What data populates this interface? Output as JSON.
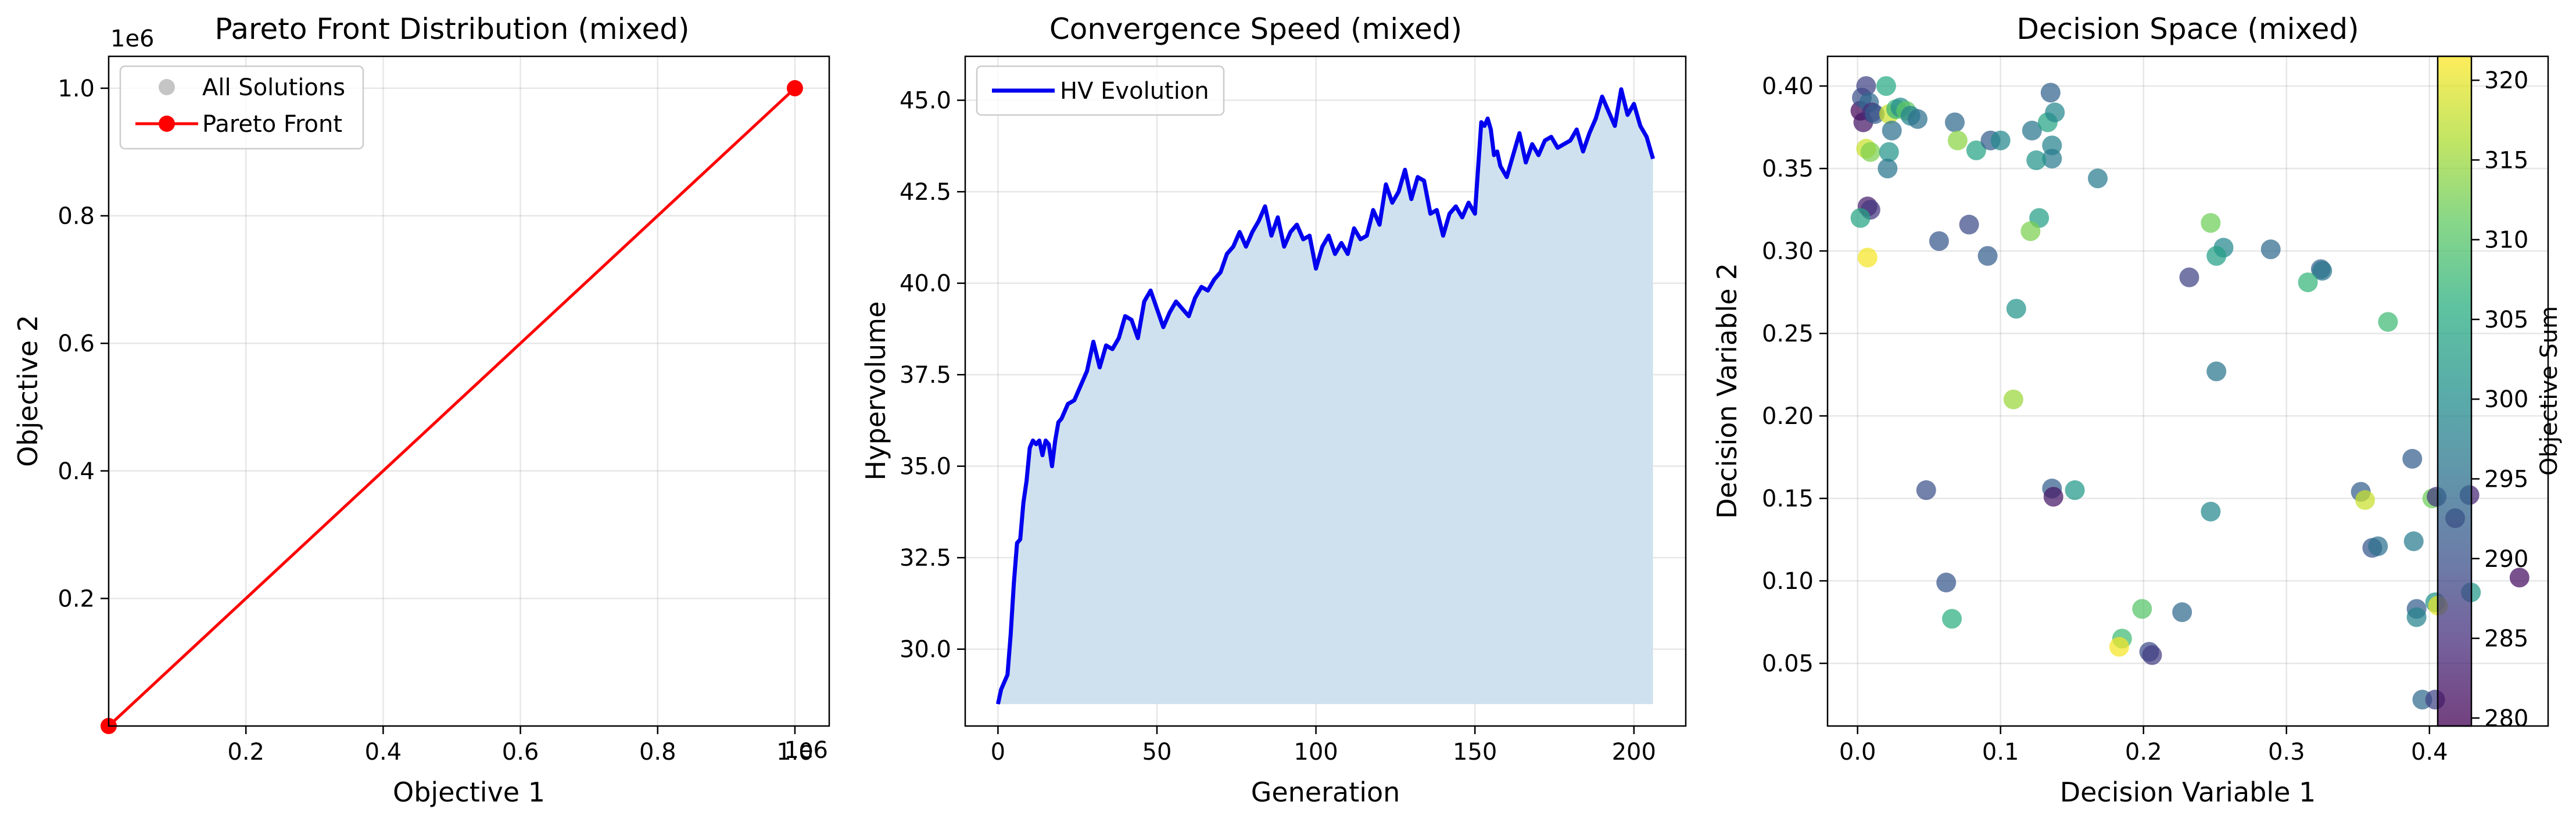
{
  "chart_data": [
    {
      "type": "line",
      "title": "Pareto Front Distribution (mixed)",
      "xlabel": "Objective 1",
      "ylabel": "Objective 2",
      "x_offset_text": "1e6",
      "y_offset_text": "1e6",
      "xlim": [
        0,
        1.05
      ],
      "ylim": [
        0,
        1.05
      ],
      "x_ticks": [
        0.2,
        0.4,
        0.6,
        0.8,
        1.0
      ],
      "x_tick_labels": [
        "0.2",
        "0.4",
        "0.6",
        "0.8",
        "1.0"
      ],
      "y_ticks": [
        0.2,
        0.4,
        0.6,
        0.8,
        1.0
      ],
      "y_tick_labels": [
        "0.2",
        "0.4",
        "0.6",
        "0.8",
        "1.0"
      ],
      "grid": true,
      "legend": "top-left",
      "series": [
        {
          "name": "All Solutions",
          "kind": "scatter",
          "color": "#bbbbbb",
          "x": [],
          "y": []
        },
        {
          "name": "Pareto Front",
          "kind": "line-marker",
          "color": "#ff0000",
          "x": [
            0,
            1.0
          ],
          "y": [
            0,
            1.0
          ]
        }
      ]
    },
    {
      "type": "area",
      "title": "Convergence Speed (mixed)",
      "xlabel": "Generation",
      "ylabel": "Hypervolume",
      "xlim": [
        -10.3,
        216.3
      ],
      "ylim": [
        27.9,
        46.2
      ],
      "x_ticks": [
        0,
        50,
        100,
        150,
        200
      ],
      "x_tick_labels": [
        "0",
        "50",
        "100",
        "150",
        "200"
      ],
      "y_ticks": [
        30.0,
        32.5,
        35.0,
        37.5,
        40.0,
        42.5,
        45.0
      ],
      "y_tick_labels": [
        "30.0",
        "32.5",
        "35.0",
        "37.5",
        "40.0",
        "42.5",
        "45.0"
      ],
      "grid": true,
      "legend": "top-left",
      "fill_color": "#cfe1ee",
      "series": [
        {
          "name": "HV Evolution",
          "color": "#0000ee",
          "x": [
            0,
            1,
            2,
            3,
            4,
            5,
            6,
            7,
            8,
            9,
            10,
            11,
            12,
            13,
            14,
            15,
            16,
            17,
            18,
            19,
            20,
            22,
            24,
            26,
            28,
            30,
            32,
            34,
            36,
            38,
            40,
            42,
            44,
            46,
            48,
            50,
            52,
            54,
            56,
            58,
            60,
            62,
            64,
            66,
            68,
            70,
            72,
            74,
            76,
            78,
            80,
            82,
            84,
            86,
            88,
            90,
            92,
            94,
            96,
            98,
            100,
            102,
            104,
            106,
            108,
            110,
            112,
            114,
            116,
            118,
            120,
            122,
            124,
            126,
            128,
            130,
            132,
            134,
            136,
            138,
            140,
            142,
            144,
            146,
            148,
            150,
            152,
            153,
            154,
            155,
            156,
            157,
            158,
            160,
            162,
            164,
            166,
            168,
            170,
            172,
            174,
            176,
            178,
            180,
            182,
            184,
            186,
            188,
            190,
            192,
            194,
            196,
            198,
            200,
            202,
            204,
            206
          ],
          "y": [
            28.5,
            28.9,
            29.1,
            29.3,
            30.4,
            31.8,
            32.9,
            33.0,
            34.0,
            34.6,
            35.5,
            35.7,
            35.6,
            35.7,
            35.3,
            35.7,
            35.6,
            35.0,
            35.7,
            36.2,
            36.3,
            36.7,
            36.8,
            37.2,
            37.6,
            38.4,
            37.7,
            38.3,
            38.2,
            38.5,
            39.1,
            39.0,
            38.5,
            39.5,
            39.8,
            39.3,
            38.8,
            39.2,
            39.5,
            39.3,
            39.1,
            39.6,
            39.9,
            39.8,
            40.1,
            40.3,
            40.8,
            41.0,
            41.4,
            41.0,
            41.4,
            41.7,
            42.1,
            41.3,
            41.8,
            41.0,
            41.4,
            41.6,
            41.2,
            41.3,
            40.4,
            41.0,
            41.3,
            40.8,
            41.1,
            40.8,
            41.5,
            41.2,
            41.3,
            42.0,
            41.6,
            42.7,
            42.2,
            42.5,
            43.1,
            42.3,
            42.9,
            42.8,
            41.9,
            42.0,
            41.3,
            41.9,
            42.1,
            41.8,
            42.2,
            41.9,
            44.4,
            44.3,
            44.5,
            44.2,
            43.5,
            43.6,
            43.2,
            42.9,
            43.5,
            44.1,
            43.3,
            43.8,
            43.5,
            43.9,
            44.0,
            43.7,
            43.8,
            43.9,
            44.2,
            43.6,
            44.1,
            44.5,
            45.1,
            44.7,
            44.3,
            45.3,
            44.6,
            44.9,
            44.3,
            44.0,
            43.4
          ]
        }
      ]
    },
    {
      "type": "scatter",
      "title": "Decision Space (mixed)",
      "xlabel": "Decision Variable 1",
      "ylabel": "Decision Variable 2",
      "xlim": [
        -0.021,
        0.483
      ],
      "ylim": [
        0.012,
        0.418
      ],
      "x_ticks": [
        0.0,
        0.1,
        0.2,
        0.3,
        0.4
      ],
      "x_tick_labels": [
        "0.0",
        "0.1",
        "0.2",
        "0.3",
        "0.4"
      ],
      "y_ticks": [
        0.05,
        0.1,
        0.15,
        0.2,
        0.25,
        0.3,
        0.35,
        0.4
      ],
      "y_tick_labels": [
        "0.05",
        "0.10",
        "0.15",
        "0.20",
        "0.25",
        "0.30",
        "0.35",
        "0.40"
      ],
      "grid": true,
      "colormap": "viridis",
      "colorbar": {
        "label": "Objective Sum",
        "min": 279.5,
        "max": 321.5,
        "ticks": [
          280,
          285,
          290,
          295,
          300,
          305,
          310,
          315,
          320
        ],
        "tick_labels": [
          "280",
          "285",
          "290",
          "295",
          "300",
          "305",
          "310",
          "315",
          "320"
        ]
      },
      "points": [
        {
          "x": 0.002,
          "y": 0.385,
          "c": 280
        },
        {
          "x": 0.003,
          "y": 0.393,
          "c": 290
        },
        {
          "x": 0.004,
          "y": 0.378,
          "c": 282
        },
        {
          "x": 0.006,
          "y": 0.4,
          "c": 288
        },
        {
          "x": 0.008,
          "y": 0.39,
          "c": 294
        },
        {
          "x": 0.01,
          "y": 0.384,
          "c": 285
        },
        {
          "x": 0.012,
          "y": 0.383,
          "c": 292
        },
        {
          "x": 0.02,
          "y": 0.4,
          "c": 305
        },
        {
          "x": 0.022,
          "y": 0.383,
          "c": 318
        },
        {
          "x": 0.024,
          "y": 0.373,
          "c": 295
        },
        {
          "x": 0.027,
          "y": 0.386,
          "c": 307
        },
        {
          "x": 0.03,
          "y": 0.387,
          "c": 300
        },
        {
          "x": 0.034,
          "y": 0.385,
          "c": 311
        },
        {
          "x": 0.037,
          "y": 0.382,
          "c": 298
        },
        {
          "x": 0.042,
          "y": 0.38,
          "c": 295
        },
        {
          "x": 0.006,
          "y": 0.362,
          "c": 318
        },
        {
          "x": 0.009,
          "y": 0.36,
          "c": 313
        },
        {
          "x": 0.022,
          "y": 0.36,
          "c": 301
        },
        {
          "x": 0.021,
          "y": 0.35,
          "c": 296
        },
        {
          "x": 0.007,
          "y": 0.327,
          "c": 283
        },
        {
          "x": 0.009,
          "y": 0.325,
          "c": 286
        },
        {
          "x": 0.002,
          "y": 0.32,
          "c": 304
        },
        {
          "x": 0.007,
          "y": 0.296,
          "c": 321
        },
        {
          "x": 0.068,
          "y": 0.378,
          "c": 294
        },
        {
          "x": 0.07,
          "y": 0.367,
          "c": 314
        },
        {
          "x": 0.083,
          "y": 0.361,
          "c": 304
        },
        {
          "x": 0.093,
          "y": 0.367,
          "c": 292
        },
        {
          "x": 0.1,
          "y": 0.367,
          "c": 299
        },
        {
          "x": 0.122,
          "y": 0.373,
          "c": 296
        },
        {
          "x": 0.133,
          "y": 0.378,
          "c": 304
        },
        {
          "x": 0.135,
          "y": 0.396,
          "c": 293
        },
        {
          "x": 0.138,
          "y": 0.384,
          "c": 299
        },
        {
          "x": 0.136,
          "y": 0.364,
          "c": 298
        },
        {
          "x": 0.136,
          "y": 0.356,
          "c": 297
        },
        {
          "x": 0.125,
          "y": 0.355,
          "c": 301
        },
        {
          "x": 0.168,
          "y": 0.344,
          "c": 297
        },
        {
          "x": 0.057,
          "y": 0.306,
          "c": 291
        },
        {
          "x": 0.078,
          "y": 0.316,
          "c": 289
        },
        {
          "x": 0.091,
          "y": 0.297,
          "c": 292
        },
        {
          "x": 0.127,
          "y": 0.32,
          "c": 303
        },
        {
          "x": 0.121,
          "y": 0.312,
          "c": 313
        },
        {
          "x": 0.111,
          "y": 0.265,
          "c": 301
        },
        {
          "x": 0.109,
          "y": 0.21,
          "c": 315
        },
        {
          "x": 0.247,
          "y": 0.317,
          "c": 312
        },
        {
          "x": 0.256,
          "y": 0.302,
          "c": 299
        },
        {
          "x": 0.251,
          "y": 0.297,
          "c": 303
        },
        {
          "x": 0.289,
          "y": 0.301,
          "c": 294
        },
        {
          "x": 0.232,
          "y": 0.284,
          "c": 288
        },
        {
          "x": 0.324,
          "y": 0.289,
          "c": 293
        },
        {
          "x": 0.325,
          "y": 0.288,
          "c": 296
        },
        {
          "x": 0.315,
          "y": 0.281,
          "c": 307
        },
        {
          "x": 0.371,
          "y": 0.257,
          "c": 308
        },
        {
          "x": 0.251,
          "y": 0.227,
          "c": 296
        },
        {
          "x": 0.048,
          "y": 0.155,
          "c": 290
        },
        {
          "x": 0.136,
          "y": 0.156,
          "c": 292
        },
        {
          "x": 0.137,
          "y": 0.151,
          "c": 282
        },
        {
          "x": 0.152,
          "y": 0.155,
          "c": 302
        },
        {
          "x": 0.247,
          "y": 0.142,
          "c": 299
        },
        {
          "x": 0.352,
          "y": 0.154,
          "c": 292
        },
        {
          "x": 0.355,
          "y": 0.149,
          "c": 318
        },
        {
          "x": 0.388,
          "y": 0.174,
          "c": 292
        },
        {
          "x": 0.402,
          "y": 0.15,
          "c": 312
        },
        {
          "x": 0.405,
          "y": 0.151,
          "c": 286
        },
        {
          "x": 0.428,
          "y": 0.152,
          "c": 284
        },
        {
          "x": 0.418,
          "y": 0.138,
          "c": 283
        },
        {
          "x": 0.36,
          "y": 0.12,
          "c": 291
        },
        {
          "x": 0.364,
          "y": 0.121,
          "c": 295
        },
        {
          "x": 0.389,
          "y": 0.124,
          "c": 297
        },
        {
          "x": 0.463,
          "y": 0.102,
          "c": 281
        },
        {
          "x": 0.062,
          "y": 0.099,
          "c": 291
        },
        {
          "x": 0.066,
          "y": 0.077,
          "c": 306
        },
        {
          "x": 0.199,
          "y": 0.083,
          "c": 310
        },
        {
          "x": 0.227,
          "y": 0.081,
          "c": 294
        },
        {
          "x": 0.185,
          "y": 0.065,
          "c": 308
        },
        {
          "x": 0.183,
          "y": 0.06,
          "c": 321
        },
        {
          "x": 0.204,
          "y": 0.057,
          "c": 289
        },
        {
          "x": 0.206,
          "y": 0.055,
          "c": 287
        },
        {
          "x": 0.391,
          "y": 0.083,
          "c": 292
        },
        {
          "x": 0.391,
          "y": 0.078,
          "c": 298
        },
        {
          "x": 0.404,
          "y": 0.087,
          "c": 301
        },
        {
          "x": 0.406,
          "y": 0.085,
          "c": 320
        },
        {
          "x": 0.429,
          "y": 0.093,
          "c": 302
        },
        {
          "x": 0.395,
          "y": 0.028,
          "c": 294
        },
        {
          "x": 0.404,
          "y": 0.028,
          "c": 288
        }
      ]
    }
  ]
}
